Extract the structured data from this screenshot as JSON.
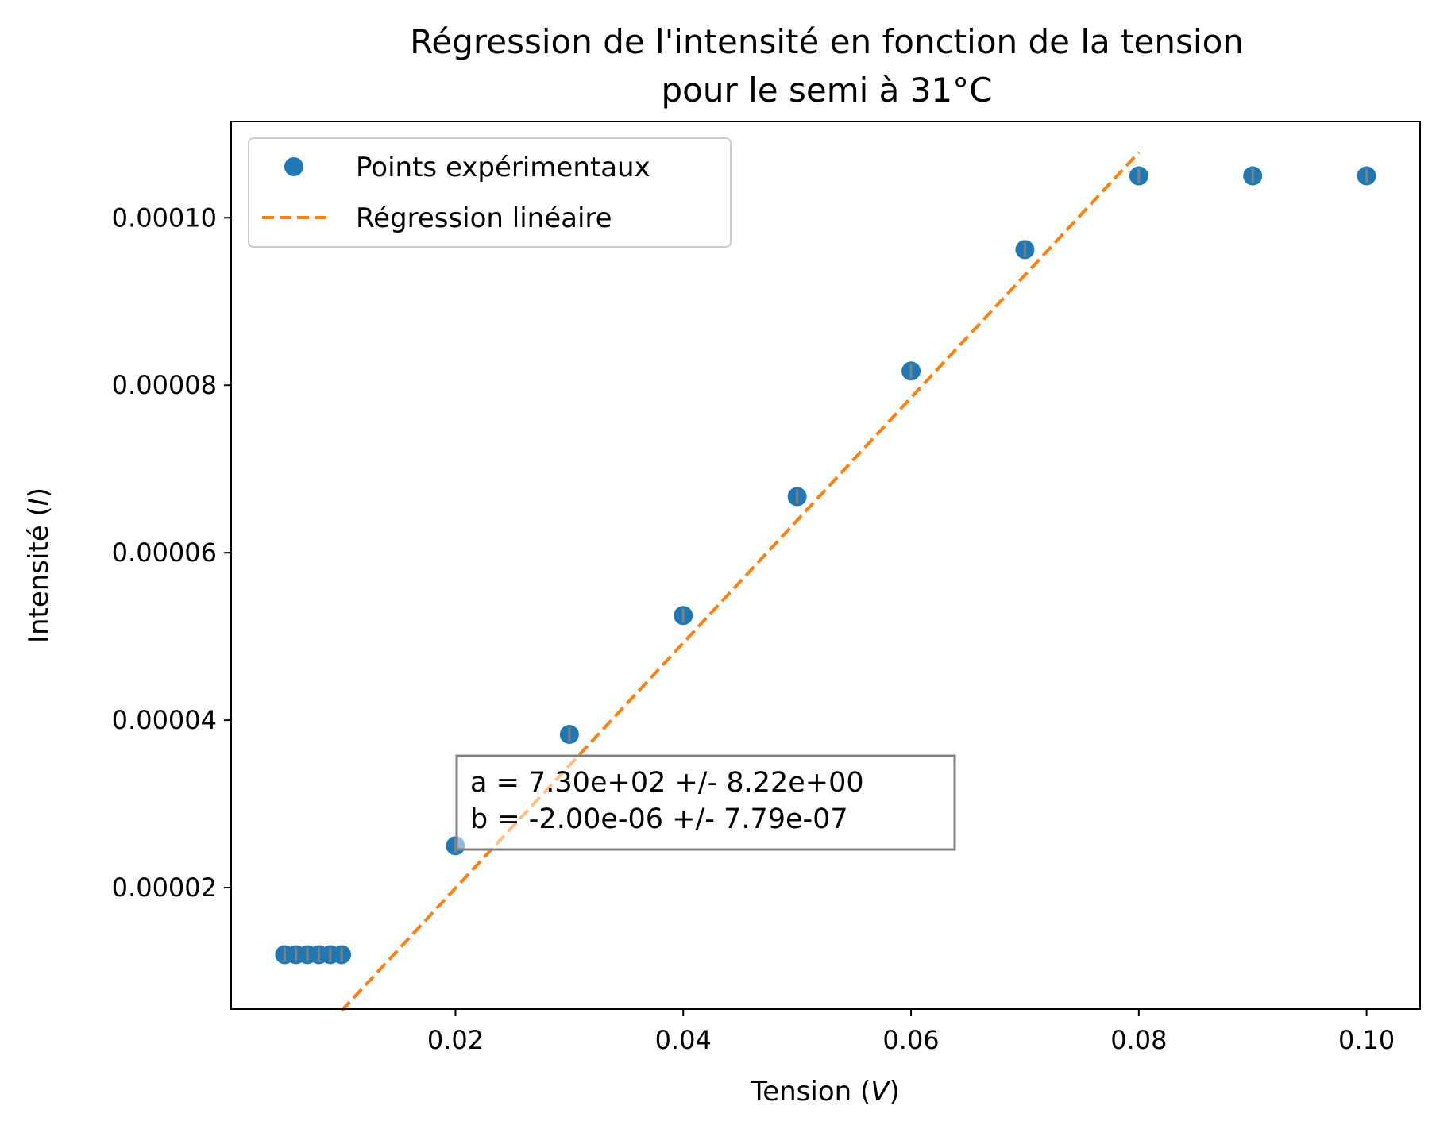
{
  "chart_data": {
    "type": "scatter",
    "title_line1": "Régression de l'intensité en fonction de la tension",
    "title_line2": "pour le semi à 31°C",
    "xlabel_text": "Tension (",
    "xlabel_unit": "V",
    "xlabel_close": ")",
    "ylabel_text": "Intensité (",
    "ylabel_unit": "I",
    "ylabel_close": ")",
    "xlim": [
      0.0003,
      0.1047
    ],
    "ylim": [
      5.5e-06,
      0.0001115
    ],
    "x_ticks": [
      0.02,
      0.04,
      0.06,
      0.08,
      0.1
    ],
    "x_tick_labels": [
      "0.02",
      "0.04",
      "0.06",
      "0.08",
      "0.10"
    ],
    "y_ticks": [
      2e-05,
      4e-05,
      6e-05,
      8e-05,
      0.0001
    ],
    "y_tick_labels": [
      "0.00002",
      "0.00004",
      "0.00006",
      "0.00008",
      "0.00010"
    ],
    "grid": false,
    "legend_position": "top-left",
    "series": [
      {
        "name": "Points expérimentaux",
        "kind": "points",
        "color": "#1f77b4",
        "x": [
          0.005,
          0.006,
          0.007,
          0.008,
          0.009,
          0.01,
          0.02,
          0.03,
          0.04,
          0.05,
          0.06,
          0.07,
          0.08,
          0.09,
          0.1
        ],
        "y": [
          1.2e-05,
          1.2e-05,
          1.2e-05,
          1.2e-05,
          1.2e-05,
          1.2e-05,
          2.5e-05,
          3.83e-05,
          5.25e-05,
          6.67e-05,
          8.17e-05,
          9.62e-05,
          0.000105,
          0.000105,
          0.000105
        ]
      },
      {
        "name": "Régression linéaire",
        "kind": "dashed-line",
        "color": "#ff7f0e",
        "x": [
          0.01,
          0.08
        ],
        "y": [
          5.3e-06,
          0.0001078
        ]
      }
    ],
    "annotation": {
      "line1": "a = 7.30e+02 +/- 8.22e+00",
      "line2": "b = -2.00e-06 +/- 7.79e-07"
    }
  }
}
